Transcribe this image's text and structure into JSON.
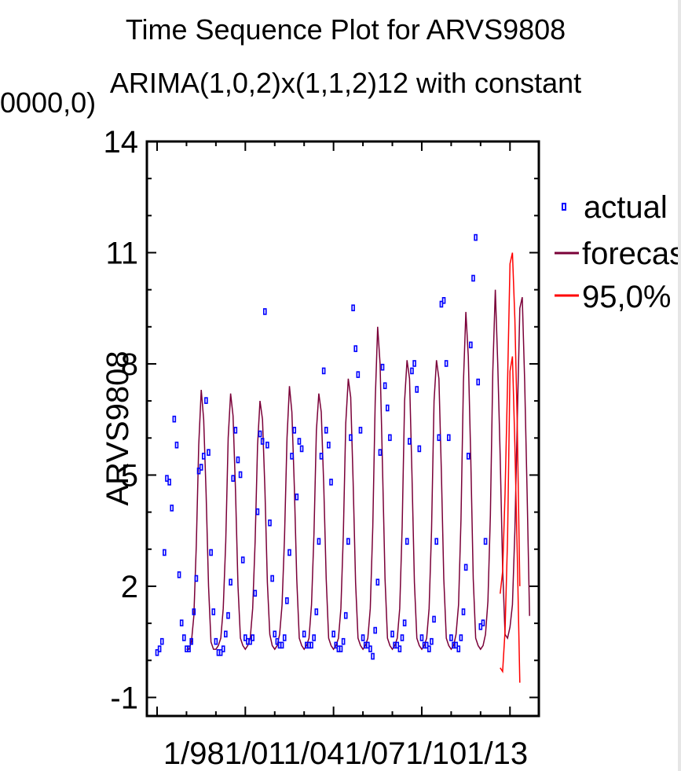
{
  "chart_data": {
    "type": "line",
    "title": "Time Sequence Plot for ARVS9808",
    "subtitle": "ARIMA(1,0,2)x(1,1,2)12 with constant",
    "overlap_text": "0000,0)",
    "ylabel": "ARVS9808",
    "xlabel": "",
    "ylim": [
      -1.5,
      14
    ],
    "yticks": [
      -1,
      2,
      5,
      8,
      11,
      14
    ],
    "ytick_labels": [
      "-1",
      "2",
      "5",
      "8",
      "11",
      "14"
    ],
    "xtick_labels": [
      "1/98",
      "1/01",
      "1/04",
      "1/07",
      "1/10",
      "1/13"
    ],
    "x_label_text": "1/981/011/041/071/101/13",
    "legend_position": "right",
    "series": [
      {
        "name": "actual",
        "marker": "square",
        "color": "#0000ff",
        "values": [
          0.2,
          0.3,
          0.5,
          2.9,
          4.9,
          4.8,
          4.1,
          6.5,
          5.8,
          2.3,
          1.0,
          0.6,
          0.3,
          0.3,
          0.5,
          1.3,
          2.2,
          5.1,
          5.2,
          5.5,
          7.0,
          5.6,
          2.9,
          1.3,
          0.5,
          0.2,
          0.2,
          0.3,
          0.7,
          1.2,
          2.1,
          4.9,
          6.2,
          5.4,
          5.0,
          2.7,
          0.6,
          0.5,
          0.5,
          0.6,
          1.8,
          4.0,
          6.1,
          5.9,
          9.4,
          5.8,
          3.7,
          2.2,
          0.7,
          0.5,
          0.4,
          0.4,
          0.6,
          1.6,
          2.9,
          5.5,
          6.2,
          4.4,
          5.9,
          5.7,
          0.7,
          0.4,
          0.4,
          0.4,
          0.6,
          1.3,
          3.2,
          5.5,
          7.8,
          6.2,
          5.8,
          4.8,
          0.7,
          0.4,
          0.3,
          0.3,
          0.5,
          1.2,
          3.2,
          6.0,
          9.5,
          8.4,
          7.7,
          6.2,
          0.6,
          0.4,
          0.4,
          0.3,
          0.1,
          0.8,
          2.1,
          5.6,
          7.9,
          7.4,
          6.8,
          6.0,
          0.7,
          0.4,
          0.4,
          0.3,
          0.6,
          1.0,
          3.2,
          5.9,
          7.8,
          8.0,
          7.3,
          5.7,
          0.6,
          0.4,
          0.4,
          0.3,
          0.5,
          1.1,
          3.2,
          6.0,
          9.6,
          9.7,
          8.0,
          6.0,
          0.6,
          0.4,
          0.4,
          0.3,
          0.6,
          1.3,
          2.5,
          5.5,
          8.5,
          10.3,
          11.4,
          7.5,
          0.9,
          1.0,
          3.2
        ]
      },
      {
        "name": "forecast",
        "color": "#7a0038",
        "values": [
          0.3,
          0.3,
          0.5,
          1.2,
          3.1,
          5.8,
          7.3,
          6.5,
          4.5,
          2.0,
          0.5,
          0.3,
          0.3,
          0.4,
          0.6,
          1.4,
          3.2,
          6.0,
          7.2,
          6.6,
          4.6,
          2.0,
          0.6,
          0.4,
          0.3,
          0.4,
          0.6,
          1.4,
          3.2,
          5.8,
          7.0,
          6.5,
          4.6,
          2.1,
          0.7,
          0.4,
          0.3,
          0.4,
          0.7,
          1.5,
          3.3,
          6.0,
          7.4,
          6.7,
          4.7,
          2.2,
          0.6,
          0.4,
          0.3,
          0.4,
          0.6,
          1.5,
          3.4,
          6.2,
          7.2,
          6.7,
          4.7,
          2.2,
          0.6,
          0.4,
          0.3,
          0.4,
          0.6,
          1.4,
          3.4,
          6.4,
          7.6,
          7.1,
          4.8,
          2.1,
          0.6,
          0.4,
          0.3,
          0.4,
          0.6,
          1.4,
          3.6,
          7.0,
          9.0,
          8.0,
          5.2,
          2.2,
          0.6,
          0.4,
          0.3,
          0.4,
          0.6,
          1.4,
          3.6,
          7.0,
          8.1,
          7.6,
          5.0,
          2.1,
          0.6,
          0.4,
          0.3,
          0.4,
          0.6,
          1.4,
          3.5,
          7.0,
          8.1,
          7.6,
          5.1,
          2.2,
          0.6,
          0.4,
          0.3,
          0.4,
          0.7,
          1.5,
          3.8,
          7.5,
          9.4,
          8.2,
          5.4,
          2.2,
          0.6,
          0.4,
          0.3,
          0.4,
          0.7,
          1.6,
          3.9,
          7.8,
          10.0,
          8.0,
          5.5,
          2.5,
          0.7,
          0.6,
          0.9,
          1.5,
          3.5,
          6.5,
          9.5,
          9.8,
          7.5,
          4.5,
          1.2
        ]
      },
      {
        "name": "95,0%",
        "color": "#ff0000",
        "upper": [
          1.8,
          2.4,
          4.5,
          7.5,
          10.7,
          11.0,
          9.2,
          6.3,
          2.0
        ],
        "lower": [
          -0.2,
          -0.3,
          0.8,
          3.3,
          7.8,
          8.2,
          5.8,
          2.8,
          -0.6
        ],
        "start_index": 140
      }
    ]
  }
}
